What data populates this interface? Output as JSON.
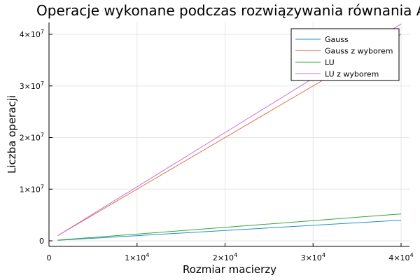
{
  "chart_data": {
    "type": "line",
    "title": "Operacje wykonane podczas rozwiązywania równania Ax=b",
    "xlabel": "Rozmiar macierzy",
    "ylabel": "Liczba operacji",
    "xlim": [
      0,
      40000
    ],
    "ylim": [
      0,
      42000000
    ],
    "grid": true,
    "legend_position": "top-right",
    "x_ticks": [
      {
        "value": 0,
        "mantissa": "0",
        "exp": ""
      },
      {
        "value": 10000,
        "mantissa": "1×10",
        "exp": "4"
      },
      {
        "value": 20000,
        "mantissa": "2×10",
        "exp": "4"
      },
      {
        "value": 30000,
        "mantissa": "3×10",
        "exp": "4"
      },
      {
        "value": 40000,
        "mantissa": "4×10",
        "exp": "4"
      }
    ],
    "y_ticks": [
      {
        "value": 0,
        "mantissa": "0",
        "exp": ""
      },
      {
        "value": 10000000,
        "mantissa": "1×10",
        "exp": "7"
      },
      {
        "value": 20000000,
        "mantissa": "2×10",
        "exp": "7"
      },
      {
        "value": 30000000,
        "mantissa": "3×10",
        "exp": "7"
      },
      {
        "value": 40000000,
        "mantissa": "4×10",
        "exp": "7"
      }
    ],
    "x": [
      1000,
      40000
    ],
    "series": [
      {
        "name": "Gauss",
        "color": "#1f8fd0",
        "values": [
          100000,
          4000000
        ]
      },
      {
        "name": "Gauss z wyborem",
        "color": "#e2744b",
        "values": [
          1000000,
          40000000
        ]
      },
      {
        "name": "LU",
        "color": "#3aa335",
        "values": [
          130000,
          5200000
        ]
      },
      {
        "name": "LU z wyborem",
        "color": "#c970d8",
        "values": [
          1000000,
          42000000
        ]
      }
    ]
  }
}
